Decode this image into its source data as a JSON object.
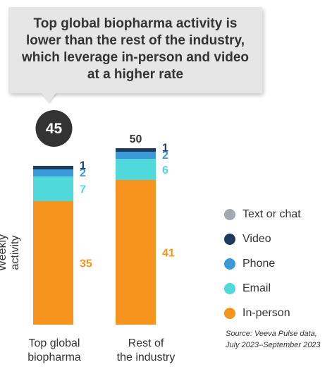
{
  "chart_data": {
    "type": "bar",
    "stacked": true,
    "title": "Top global biopharma activity is lower than the rest of the industry, which leverage in-person and video at a higher rate",
    "ylabel": "Weekly activity",
    "categories": [
      "Top global\nbiopharma",
      "Rest of\nthe industry"
    ],
    "totals": [
      45,
      50
    ],
    "highlight_total_index": 0,
    "series": [
      {
        "name": "In-person",
        "color": "#f7941d",
        "values": [
          35,
          41
        ]
      },
      {
        "name": "Email",
        "color": "#4fd9db",
        "values": [
          7,
          6
        ]
      },
      {
        "name": "Phone",
        "color": "#3a9ad9",
        "values": [
          2,
          2
        ]
      },
      {
        "name": "Video",
        "color": "#1f3a5c",
        "values": [
          1,
          1
        ]
      },
      {
        "name": "Text or chat",
        "color": "#a3a8b2",
        "values": [
          0,
          0
        ]
      }
    ],
    "legend_order": [
      "Text or chat",
      "Video",
      "Phone",
      "Email",
      "In-person"
    ],
    "legend_position": "right",
    "source": "Source: Veeva Pulse data, July 2023–September 2023",
    "grid": false
  }
}
